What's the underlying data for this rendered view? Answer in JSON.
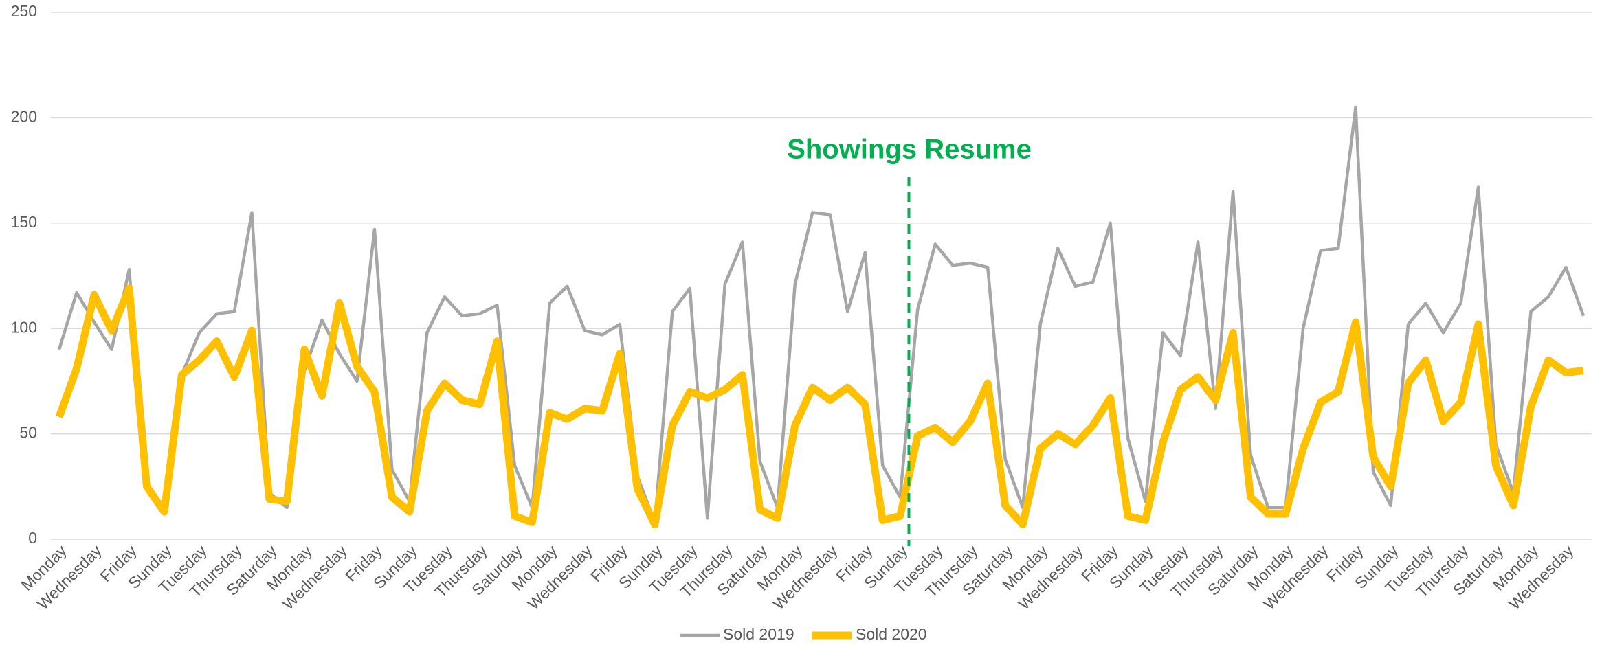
{
  "chart_data": {
    "type": "line",
    "annotation": "Showings Resume",
    "categories": [
      "Monday",
      null,
      "Wednesday",
      null,
      "Friday",
      null,
      "Sunday",
      null,
      "Tuesday",
      null,
      "Thursday",
      null,
      "Saturday",
      null,
      "Monday",
      null,
      "Wednesday",
      null,
      "Friday",
      null,
      "Sunday",
      null,
      "Tuesday",
      null,
      "Thursday",
      null,
      "Saturday",
      null,
      "Monday",
      null,
      "Wednesday",
      null,
      "Friday",
      null,
      "Sunday",
      null,
      "Tuesday",
      null,
      "Thursday",
      null,
      "Saturday",
      null,
      "Monday",
      null,
      "Wednesday",
      null,
      "Friday",
      null,
      "Sunday",
      null,
      "Tuesday",
      null,
      "Thursday",
      null,
      "Saturday",
      null,
      "Monday",
      null,
      "Wednesday",
      null,
      "Friday",
      null,
      "Sunday",
      null,
      "Tuesday",
      null,
      "Thursday",
      null,
      "Saturday",
      null,
      "Monday",
      null,
      "Wednesday",
      null,
      "Friday",
      null,
      "Sunday",
      null,
      "Tuesday",
      null,
      "Thursday",
      null,
      "Saturday",
      null,
      "Monday",
      null,
      "Wednesday",
      null
    ],
    "series": [
      {
        "name": "Sold 2019",
        "color": "#a6a6a6",
        "width": 4.5,
        "values": [
          90,
          117,
          103,
          90,
          128,
          25,
          14,
          78,
          98,
          107,
          108,
          155,
          22,
          15,
          80,
          104,
          88,
          75,
          147,
          33,
          18,
          98,
          115,
          106,
          107,
          111,
          35,
          15,
          112,
          120,
          99,
          97,
          102,
          30,
          8,
          108,
          119,
          10,
          121,
          141,
          37,
          15,
          121,
          155,
          154,
          108,
          136,
          35,
          20,
          109,
          140,
          130,
          131,
          129,
          38,
          15,
          102,
          138,
          120,
          122,
          150,
          48,
          18,
          98,
          87,
          141,
          62,
          165,
          40,
          15,
          15,
          100,
          137,
          138,
          205,
          32,
          16,
          102,
          112,
          98,
          112,
          167,
          45,
          22,
          108,
          115,
          129,
          106
        ]
      },
      {
        "name": "Sold 2020",
        "color": "#ffc000",
        "width": 11,
        "values": [
          58,
          81,
          116,
          99,
          119,
          25,
          13,
          78,
          85,
          94,
          77,
          99,
          19,
          18,
          90,
          68,
          112,
          82,
          70,
          20,
          13,
          61,
          74,
          66,
          64,
          94,
          11,
          8,
          60,
          57,
          62,
          61,
          88,
          24,
          7,
          54,
          70,
          67,
          71,
          78,
          14,
          10,
          54,
          72,
          66,
          72,
          64,
          9,
          11,
          49,
          53,
          46,
          56,
          74,
          16,
          7,
          43,
          50,
          45,
          54,
          67,
          11,
          9,
          46,
          71,
          77,
          66,
          98,
          20,
          12,
          12,
          43,
          65,
          70,
          103,
          39,
          25,
          74,
          85,
          56,
          65,
          102,
          35,
          16,
          63,
          85,
          79,
          80
        ]
      }
    ],
    "ylim": [
      0,
      250
    ],
    "yticks": [
      0,
      50,
      100,
      150,
      200,
      250
    ],
    "grid": true
  }
}
